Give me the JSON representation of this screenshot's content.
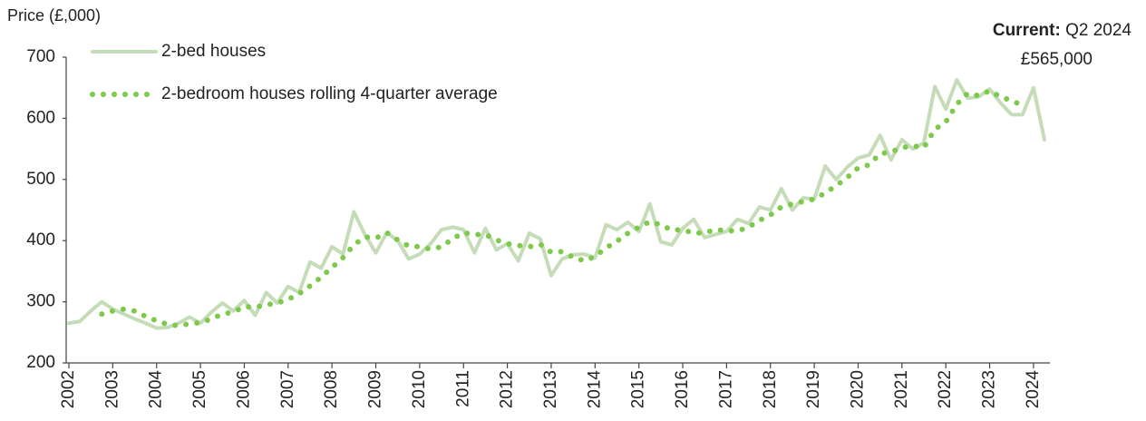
{
  "chart_data": {
    "type": "line",
    "y_label": "Price (£,000)",
    "annotation": {
      "label": "Current:",
      "period": "Q2 2024",
      "value": "£565,000"
    },
    "categories": [
      "2002",
      null,
      null,
      null,
      "2003",
      null,
      null,
      null,
      "2004",
      null,
      null,
      null,
      "2005",
      null,
      null,
      null,
      "2006",
      null,
      null,
      null,
      "2007",
      null,
      null,
      null,
      "2008",
      null,
      null,
      null,
      "2009",
      null,
      null,
      null,
      "2010",
      null,
      null,
      null,
      "2011",
      null,
      null,
      null,
      "2012",
      null,
      null,
      null,
      "2013",
      null,
      null,
      null,
      "2014",
      null,
      null,
      null,
      "2015",
      null,
      null,
      null,
      "2016",
      null,
      null,
      null,
      "2017",
      null,
      null,
      null,
      "2018",
      null,
      null,
      null,
      "2019",
      null,
      null,
      null,
      "2020",
      null,
      null,
      null,
      "2021",
      null,
      null,
      null,
      "2022",
      null,
      null,
      null,
      "2023",
      null,
      null,
      null,
      "2024",
      null
    ],
    "series": [
      {
        "name": "2-bed houses",
        "color": "#c5dcb8",
        "style": "solid",
        "values": [
          265,
          268,
          285,
          300,
          288,
          280,
          272,
          265,
          257,
          258,
          265,
          275,
          265,
          283,
          298,
          285,
          302,
          278,
          315,
          298,
          325,
          315,
          365,
          355,
          390,
          378,
          447,
          410,
          380,
          413,
          400,
          370,
          378,
          395,
          418,
          422,
          418,
          380,
          420,
          385,
          395,
          367,
          412,
          403,
          343,
          370,
          377,
          378,
          372,
          426,
          418,
          430,
          415,
          460,
          398,
          393,
          420,
          435,
          405,
          410,
          415,
          435,
          428,
          455,
          450,
          485,
          450,
          470,
          468,
          522,
          500,
          520,
          535,
          540,
          572,
          532,
          565,
          550,
          560,
          652,
          615,
          663,
          633,
          635,
          648,
          625,
          606,
          606,
          650,
          565
        ]
      },
      {
        "name": "2-bedroom houses rolling 4-quarter average",
        "color": "#7dc94a",
        "style": "dotted",
        "values": [
          null,
          null,
          null,
          280,
          285,
          288,
          285,
          276,
          269,
          263,
          261,
          264,
          266,
          272,
          280,
          283,
          292,
          291,
          295,
          298,
          304,
          313,
          326,
          340,
          356,
          372,
          393,
          406,
          404,
          413,
          401,
          391,
          390,
          386,
          390,
          403,
          413,
          410,
          410,
          401,
          395,
          392,
          390,
          394,
          381,
          382,
          373,
          367,
          374,
          388,
          399,
          412,
          422,
          431,
          426,
          417,
          418,
          412,
          413,
          418,
          416,
          416,
          422,
          433,
          442,
          455,
          460,
          464,
          468,
          478,
          490,
          503,
          519,
          524,
          542,
          545,
          552,
          555,
          552,
          582,
          594,
          623,
          641,
          637,
          645,
          635,
          629,
          621,
          null,
          null
        ]
      }
    ],
    "ylim": [
      200,
      700
    ],
    "yticks": [
      200,
      300,
      400,
      500,
      600,
      700
    ],
    "grid": false,
    "legend": "upper left"
  }
}
